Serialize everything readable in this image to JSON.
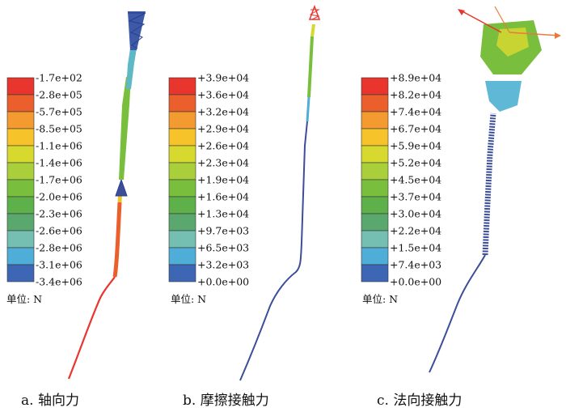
{
  "figure": {
    "panels": [
      {
        "caption": "a. 轴向力",
        "unit_label": "单位: N",
        "legend_values": [
          "-1.7e+02",
          "-2.8e+05",
          "-5.7e+05",
          "-8.5e+05",
          "-1.1e+06",
          "-1.4e+06",
          "-1.7e+06",
          "-2.0e+06",
          "-2.3e+06",
          "-2.6e+06",
          "-2.8e+06",
          "-3.1e+06",
          "-3.4e+06"
        ]
      },
      {
        "caption": "b. 摩擦接触力",
        "unit_label": "单位: N",
        "legend_values": [
          "+3.9e+04",
          "+3.6e+04",
          "+3.2e+04",
          "+2.9e+04",
          "+2.6e+04",
          "+2.3e+04",
          "+1.9e+04",
          "+1.6e+04",
          "+1.3e+04",
          "+9.7e+03",
          "+6.5e+03",
          "+3.2e+03",
          "+0.0e+00"
        ]
      },
      {
        "caption": "c. 法向接触力",
        "unit_label": "单位: N",
        "legend_values": [
          "+8.9e+04",
          "+8.2e+04",
          "+7.4e+04",
          "+6.7e+04",
          "+5.9e+04",
          "+5.2e+04",
          "+4.5e+04",
          "+3.7e+04",
          "+3.0e+04",
          "+2.2e+04",
          "+1.5e+04",
          "+7.4e+03",
          "+0.0e+00"
        ]
      }
    ],
    "palette": [
      "#e8352e",
      "#ea5f2c",
      "#f39a30",
      "#f6c32b",
      "#d8d92f",
      "#a9cf3b",
      "#79bf3d",
      "#5eb04a",
      "#5aa86e",
      "#74bfb1",
      "#4faed8",
      "#3d66b5",
      "#3c4d9a"
    ]
  },
  "chart_data": [
    {
      "type": "heatmap",
      "title": "a. 轴向力",
      "unit": "N",
      "color_scale_ticks": [
        -170,
        -280000,
        -570000,
        -850000,
        -1100000,
        -1400000,
        -1700000,
        -2000000,
        -2300000,
        -2600000,
        -2800000,
        -3100000,
        -3400000
      ],
      "color_scale_labels": [
        "-1.7e+02",
        "-2.8e+05",
        "-5.7e+05",
        "-8.5e+05",
        "-1.1e+06",
        "-1.4e+06",
        "-1.7e+06",
        "-2.0e+06",
        "-2.3e+06",
        "-2.6e+06",
        "-2.8e+06",
        "-3.1e+06",
        "-3.4e+06"
      ]
    },
    {
      "type": "heatmap",
      "title": "b. 摩擦接触力",
      "unit": "N",
      "color_scale_ticks": [
        39000,
        36000,
        32000,
        29000,
        26000,
        23000,
        19000,
        16000,
        13000,
        9700,
        6500,
        3200,
        0
      ],
      "color_scale_labels": [
        "+3.9e+04",
        "+3.6e+04",
        "+3.2e+04",
        "+2.9e+04",
        "+2.6e+04",
        "+2.3e+04",
        "+1.9e+04",
        "+1.6e+04",
        "+1.3e+04",
        "+9.7e+03",
        "+6.5e+03",
        "+3.2e+03",
        "+0.0e+00"
      ]
    },
    {
      "type": "heatmap",
      "title": "c. 法向接触力",
      "unit": "N",
      "color_scale_ticks": [
        89000,
        82000,
        74000,
        67000,
        59000,
        52000,
        45000,
        37000,
        30000,
        22000,
        15000,
        7400,
        0
      ],
      "color_scale_labels": [
        "+8.9e+04",
        "+8.2e+04",
        "+7.4e+04",
        "+6.7e+04",
        "+5.9e+04",
        "+5.2e+04",
        "+4.5e+04",
        "+3.7e+04",
        "+3.0e+04",
        "+2.2e+04",
        "+1.5e+04",
        "+7.4e+03",
        "+0.0e+00"
      ]
    }
  ]
}
